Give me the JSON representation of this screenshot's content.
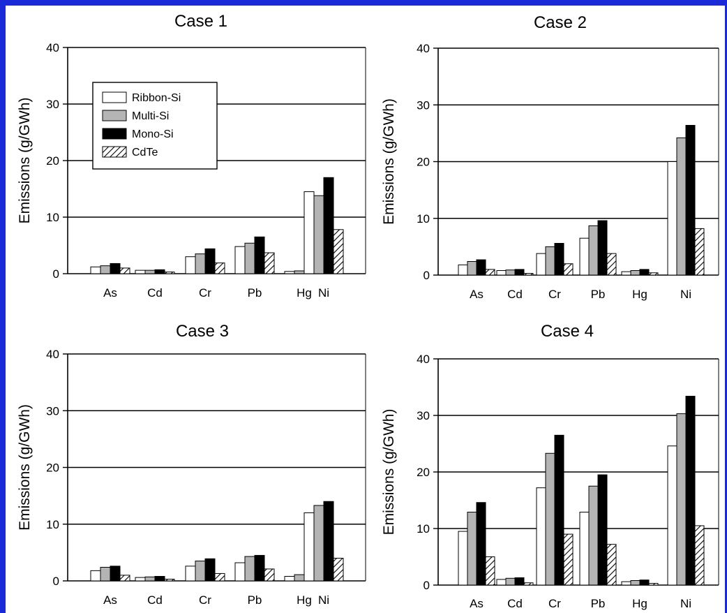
{
  "colors": {
    "frame": "#1a2ad8",
    "Ribbon-Si": "#ffffff",
    "Multi-Si": "#b4b4b4",
    "Mono-Si": "#000000",
    "CdTe": "hatched"
  },
  "chart_data": [
    {
      "type": "bar",
      "title": "Case 1",
      "xlabel": "",
      "ylabel": "Emissions (g/GWh)",
      "ylim": [
        0,
        40
      ],
      "yticks": [
        0,
        10,
        20,
        30,
        40
      ],
      "grid": "horizontal",
      "legend_placement": "top-left",
      "categories": [
        "As",
        "Cd",
        "Cr",
        "Pb",
        "Hg",
        "Ni"
      ],
      "series": [
        {
          "name": "Ribbon-Si",
          "values": [
            1.2,
            0.6,
            3.0,
            4.8,
            0.4,
            14.5
          ]
        },
        {
          "name": "Multi-Si",
          "values": [
            1.4,
            0.6,
            3.5,
            5.4,
            0.5,
            13.8
          ]
        },
        {
          "name": "Mono-Si",
          "values": [
            1.8,
            0.7,
            4.4,
            6.5,
            0.6,
            17.0
          ]
        },
        {
          "name": "CdTe",
          "values": [
            1.0,
            0.3,
            1.9,
            3.7,
            0.4,
            7.8
          ]
        }
      ]
    },
    {
      "type": "bar",
      "title": "Case 2",
      "xlabel": "",
      "ylabel": "Emissions (g/GWh)",
      "ylim": [
        0,
        40
      ],
      "yticks": [
        0,
        10,
        20,
        30,
        40
      ],
      "grid": "horizontal",
      "categories": [
        "As",
        "Cd",
        "Cr",
        "Pb",
        "Hg",
        "Ni"
      ],
      "series": [
        {
          "name": "Ribbon-Si",
          "values": [
            1.8,
            0.8,
            3.8,
            6.5,
            0.6,
            20.0
          ]
        },
        {
          "name": "Multi-Si",
          "values": [
            2.4,
            0.9,
            5.0,
            8.7,
            0.8,
            24.2
          ]
        },
        {
          "name": "Mono-Si",
          "values": [
            2.7,
            1.0,
            5.6,
            9.6,
            1.0,
            26.4
          ]
        },
        {
          "name": "CdTe",
          "values": [
            1.0,
            0.3,
            2.0,
            3.8,
            0.4,
            8.2
          ]
        }
      ]
    },
    {
      "type": "bar",
      "title": "Case 3",
      "xlabel": "",
      "ylabel": "Emissions (g/GWh)",
      "ylim": [
        0,
        40
      ],
      "yticks": [
        0,
        10,
        20,
        30,
        40
      ],
      "grid": "horizontal",
      "categories": [
        "As",
        "Cd",
        "Cr",
        "Pb",
        "Hg",
        "Ni"
      ],
      "series": [
        {
          "name": "Ribbon-Si",
          "values": [
            1.8,
            0.6,
            2.6,
            3.2,
            0.8,
            12.0
          ]
        },
        {
          "name": "Multi-Si",
          "values": [
            2.4,
            0.7,
            3.5,
            4.3,
            1.1,
            13.3
          ]
        },
        {
          "name": "Mono-Si",
          "values": [
            2.6,
            0.8,
            3.9,
            4.5,
            1.3,
            14.0
          ]
        },
        {
          "name": "CdTe",
          "values": [
            1.0,
            0.3,
            1.3,
            2.1,
            0.4,
            4.0
          ]
        }
      ]
    },
    {
      "type": "bar",
      "title": "Case 4",
      "xlabel": "",
      "ylabel": "Emissions (g/GWh)",
      "ylim": [
        0,
        40
      ],
      "yticks": [
        0,
        10,
        20,
        30,
        40
      ],
      "grid": "horizontal",
      "categories": [
        "As",
        "Cd",
        "Cr",
        "Pb",
        "Hg",
        "Ni"
      ],
      "series": [
        {
          "name": "Ribbon-Si",
          "values": [
            9.5,
            1.0,
            17.2,
            12.9,
            0.6,
            24.6
          ]
        },
        {
          "name": "Multi-Si",
          "values": [
            12.9,
            1.2,
            23.3,
            17.5,
            0.8,
            30.3
          ]
        },
        {
          "name": "Mono-Si",
          "values": [
            14.6,
            1.3,
            26.5,
            19.5,
            0.9,
            33.4
          ]
        },
        {
          "name": "CdTe",
          "values": [
            5.0,
            0.4,
            9.0,
            7.2,
            0.3,
            10.5
          ]
        }
      ]
    }
  ]
}
